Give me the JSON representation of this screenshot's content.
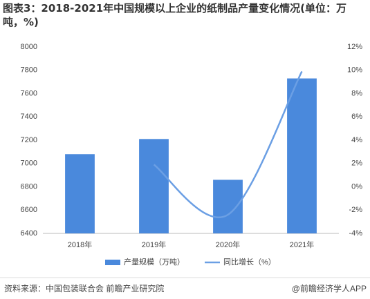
{
  "chart_data": {
    "type": "bar-line",
    "title": "图表3：2018-2021年中国规模以上企业的纸制品产量变化情况(单位：万吨，%)",
    "categories": [
      "2018年",
      "2019年",
      "2020年",
      "2021年"
    ],
    "series": [
      {
        "name": "产量规模（万吨）",
        "color": "#4a89dc",
        "type": "bar",
        "values": [
          7080,
          7210,
          6860,
          7730
        ]
      },
      {
        "name": "同比增长（%）",
        "color": "#6b9fe4",
        "type": "line",
        "axis": "y2",
        "values": [
          null,
          1.9,
          -2.4,
          9.9
        ]
      }
    ],
    "ylim": [
      6400,
      8000
    ],
    "yticks": [
      6400,
      6600,
      6800,
      7000,
      7200,
      7400,
      7600,
      7800,
      8000
    ],
    "y2lim": [
      -4,
      12
    ],
    "y2ticks": [
      {
        "value": -4,
        "label": "-4%"
      },
      {
        "value": -2,
        "label": "-2%"
      },
      {
        "value": 0,
        "label": "0%"
      },
      {
        "value": 2,
        "label": "2%"
      },
      {
        "value": 4,
        "label": "4%"
      },
      {
        "value": 6,
        "label": "6%"
      },
      {
        "value": 8,
        "label": "8%"
      },
      {
        "value": 10,
        "label": "10%"
      },
      {
        "value": 12,
        "label": "12%"
      }
    ],
    "grid": false,
    "legend": "bottom",
    "source": "资料来源：中国包装联合会 前瞻产业研究院",
    "credit": "@前瞻经济学人APP"
  }
}
